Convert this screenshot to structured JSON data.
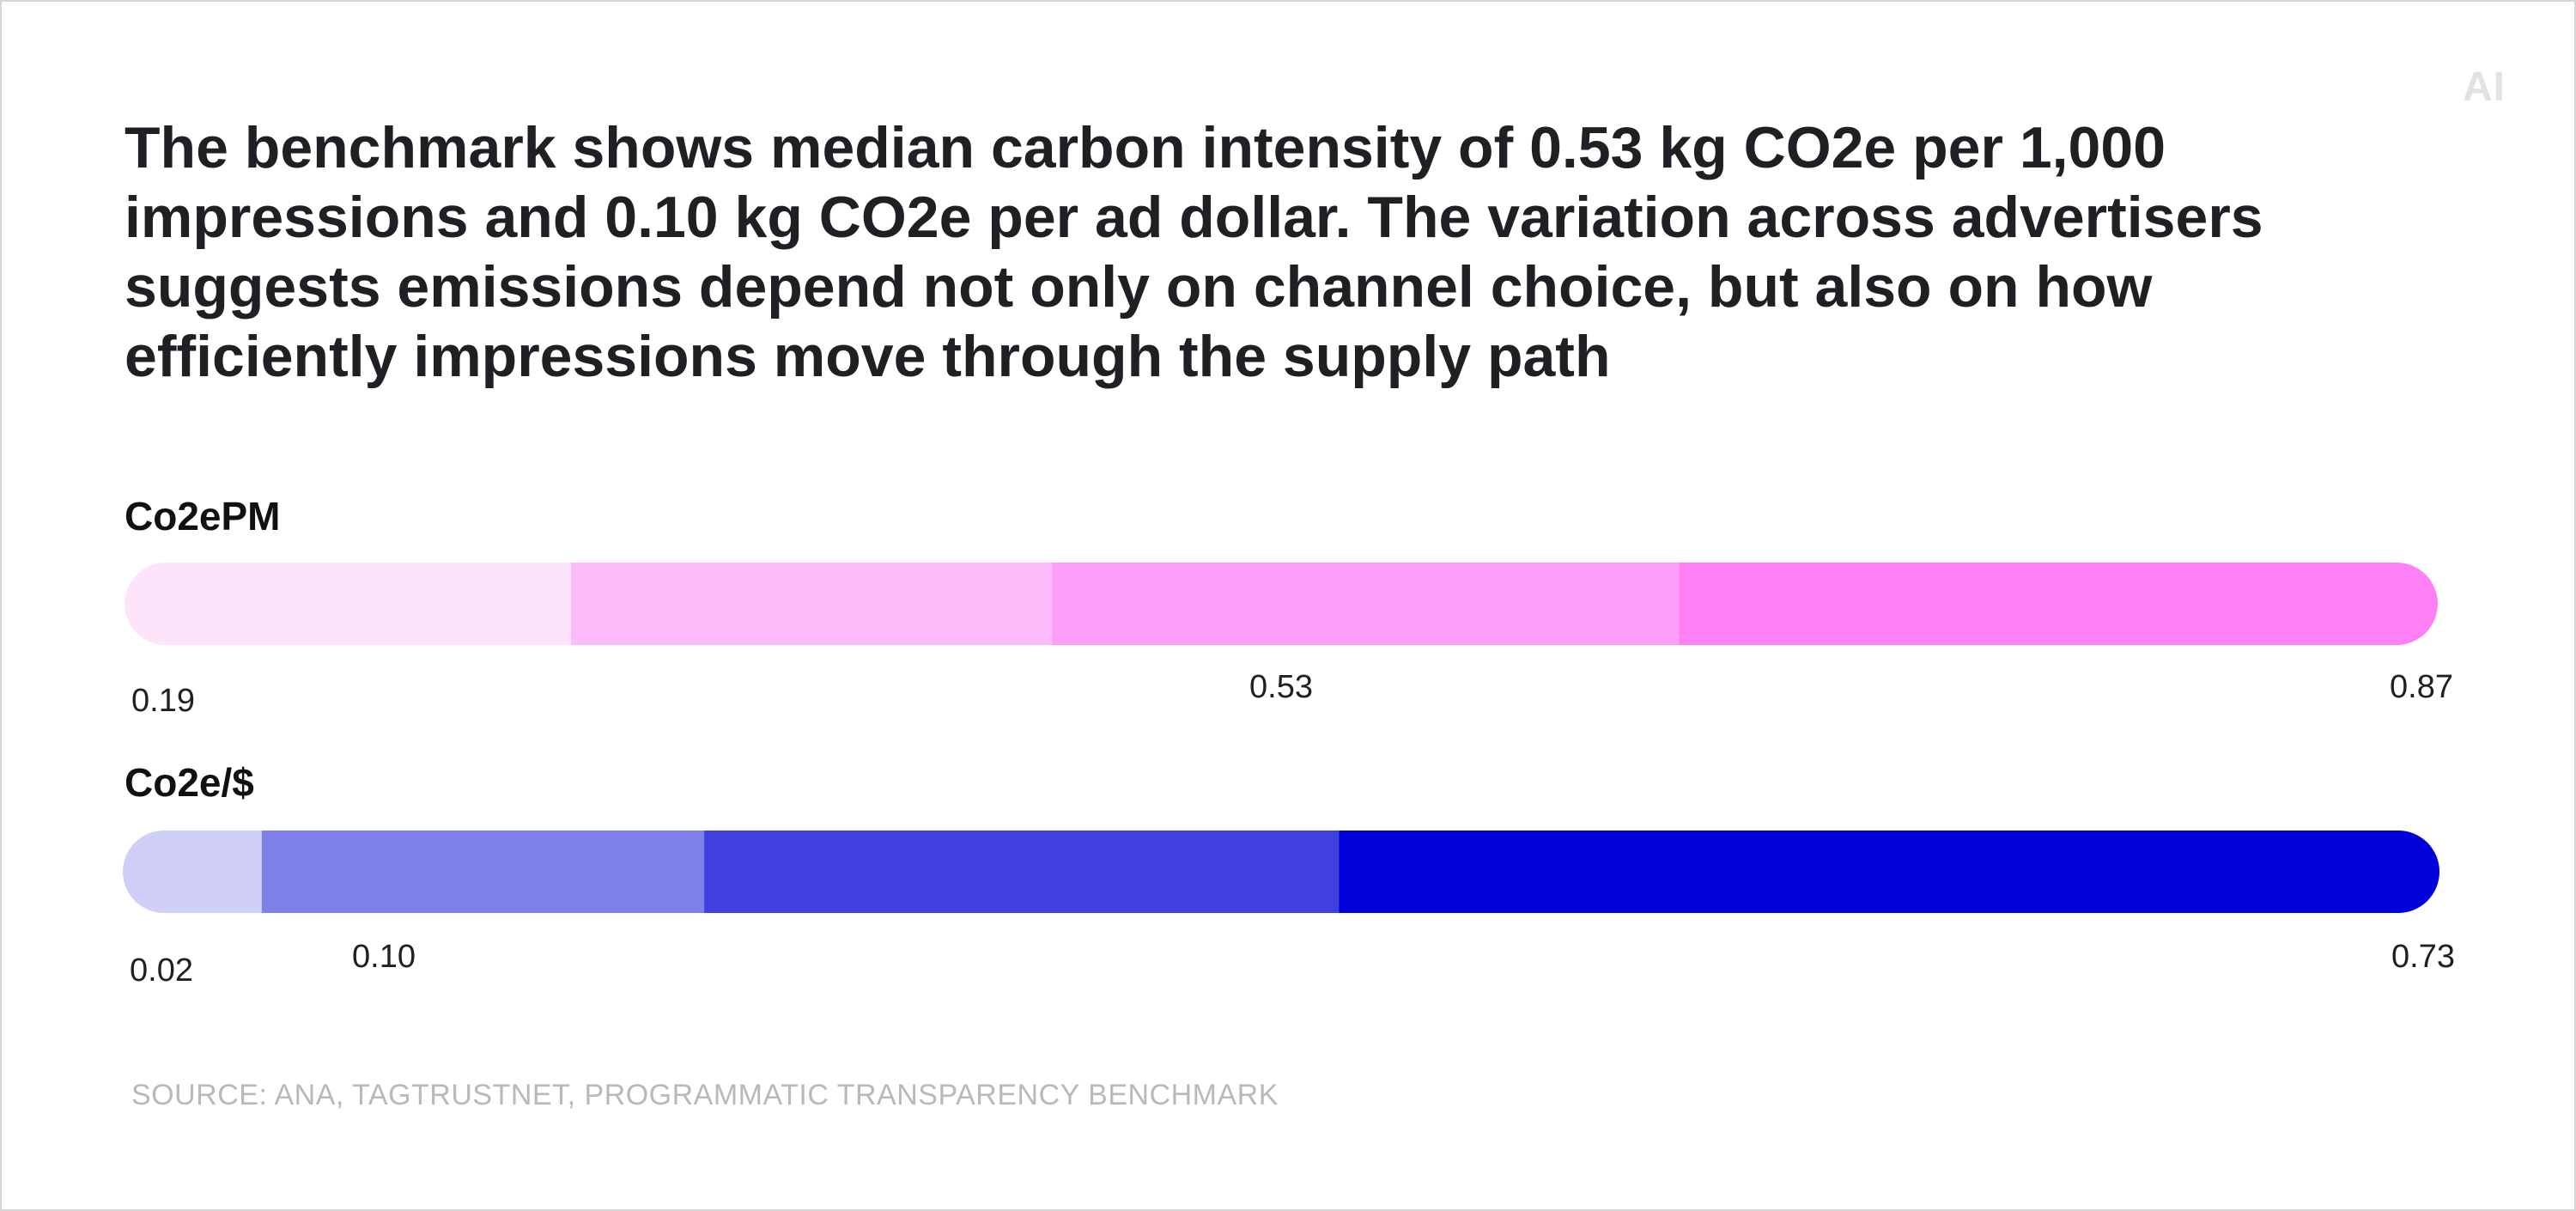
{
  "logo_text": "AI",
  "headline": "The benchmark shows median carbon intensity of 0.53 kg CO2e per 1,000 impressions and 0.10 kg CO2e per ad dollar. The variation across advertisers suggests emissions depend not only on channel choice, but also on how efficiently impressions move through the supply path",
  "source": "SOURCE: ANA, TAGTRUSTNET, PROGRAMMATIC TRANSPARENCY BENCHMARK",
  "chart_data": [
    {
      "type": "bar",
      "name": "Co2ePM",
      "min": 0.19,
      "median": 0.53,
      "max": 0.87,
      "tick_labels": [
        "0.19",
        "0.53",
        "0.87"
      ],
      "segment_colors": [
        "#fde4fb",
        "#fcbbf9",
        "#fd9df7",
        "#ff7ff5"
      ],
      "segment_share": [
        0.193,
        0.208,
        0.271,
        0.328
      ]
    },
    {
      "type": "bar",
      "name": "Co2e/$",
      "min": 0.02,
      "median": 0.1,
      "max": 0.73,
      "tick_labels": [
        "0.02",
        "0.10",
        "0.73"
      ],
      "segment_colors": [
        "#cfcff7",
        "#7f7fea",
        "#4040e0",
        "#0000d9"
      ],
      "segment_share": [
        0.06,
        0.191,
        0.274,
        0.475
      ]
    }
  ]
}
